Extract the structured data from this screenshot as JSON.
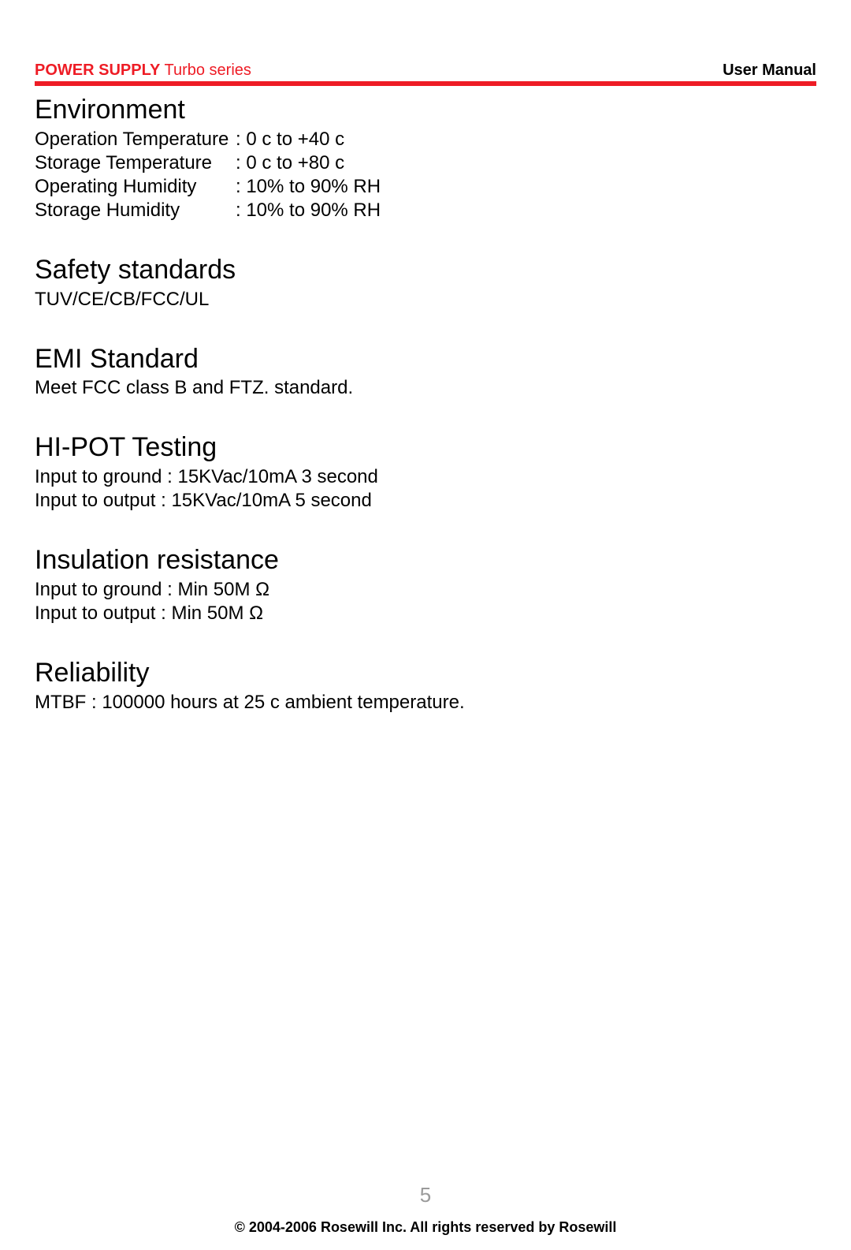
{
  "header": {
    "title_bold": "POWER SUPPLY",
    "title_normal": " Turbo series",
    "right": "User Manual"
  },
  "colors": {
    "accent": "#ee1c25",
    "text": "#000000",
    "page_num": "#9a9a9a",
    "background": "#ffffff"
  },
  "sections": [
    {
      "title": "Environment",
      "rows": [
        {
          "label": "Operation Temperature",
          "value": ": 0 c to +40 c"
        },
        {
          "label": "Storage Temperature",
          "value": ": 0 c to +80 c"
        },
        {
          "label": "Operating Humidity",
          "value": ": 10% to 90% RH"
        },
        {
          "label": "Storage Humidity",
          "value": ": 10% to 90% RH"
        }
      ]
    },
    {
      "title": "Safety standards",
      "lines": [
        "TUV/CE/CB/FCC/UL"
      ]
    },
    {
      "title": "EMI Standard",
      "lines": [
        "Meet FCC class B and FTZ. standard."
      ]
    },
    {
      "title": "HI-POT Testing",
      "lines": [
        "Input to ground : 15KVac/10mA  3 second",
        "Input to output  : 15KVac/10mA  5 second"
      ]
    },
    {
      "title": "Insulation resistance",
      "lines": [
        "Input to ground : Min 50M Ω",
        "Input to output  : Min 50M Ω"
      ]
    },
    {
      "title": "Reliability",
      "lines": [
        "MTBF : 100000 hours at 25 c ambient temperature."
      ]
    }
  ],
  "page_number": "5",
  "copyright": "© 2004-2006 Rosewill Inc. All rights reserved by Rosewill"
}
